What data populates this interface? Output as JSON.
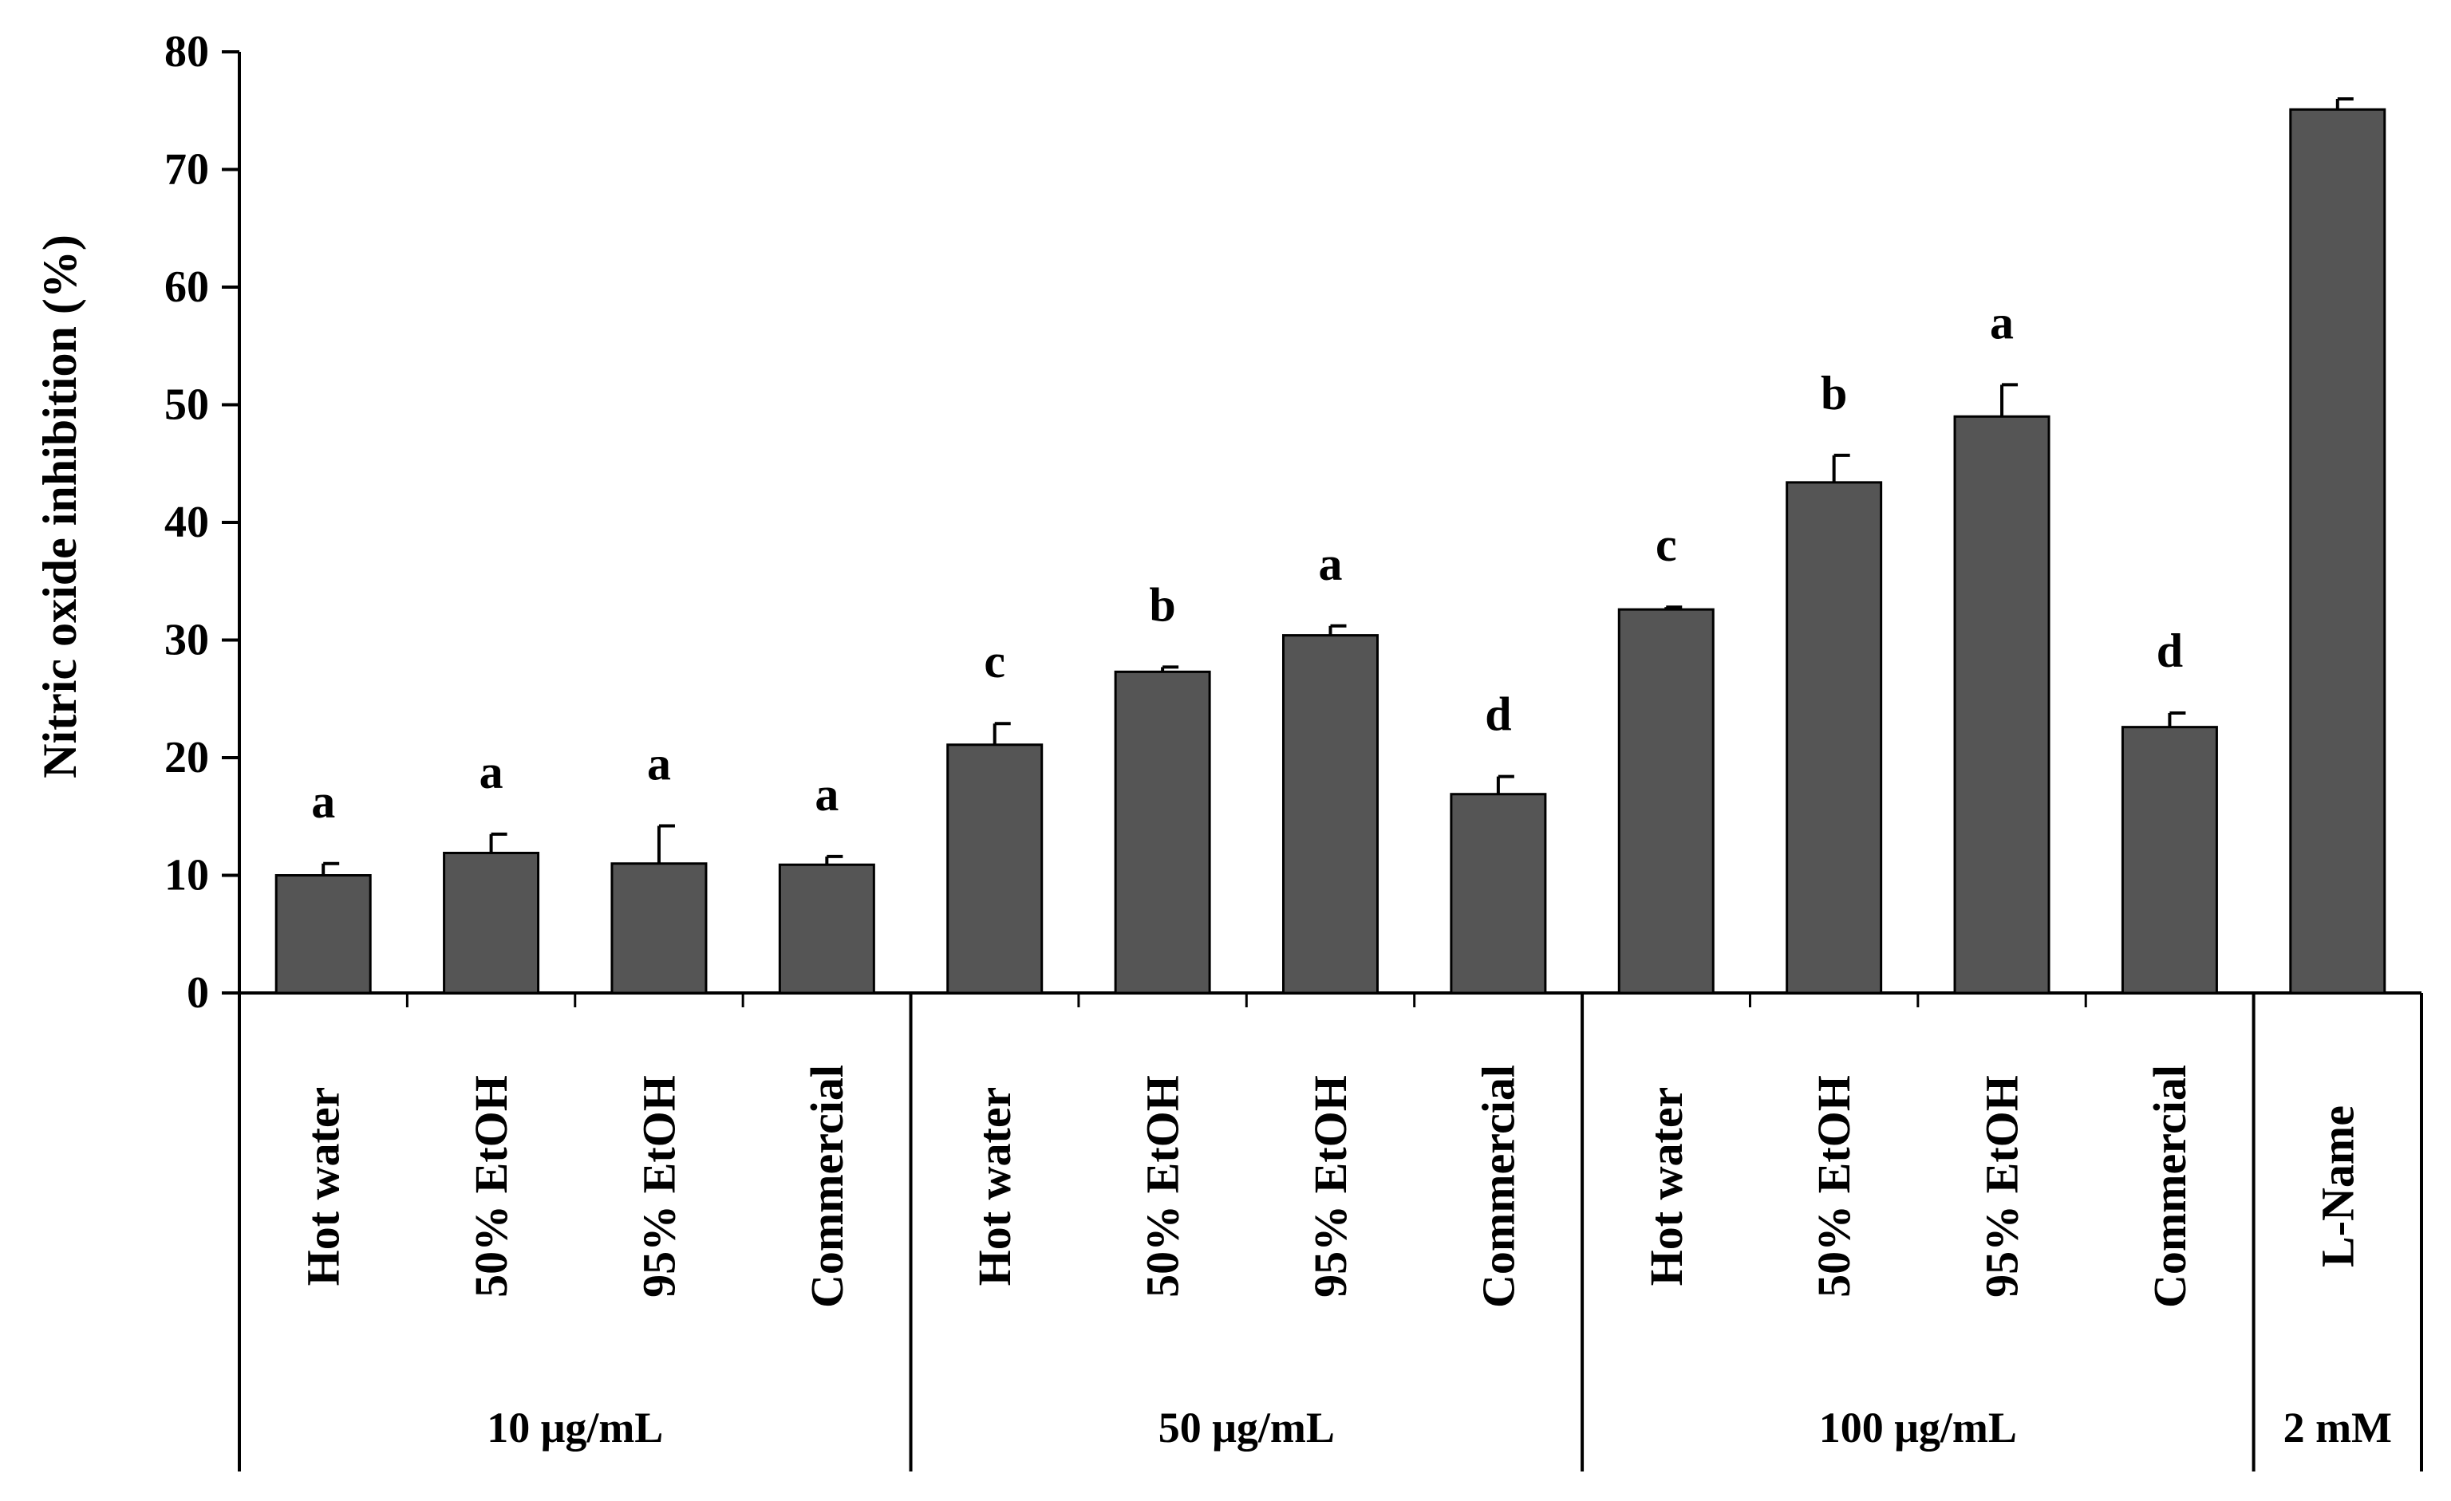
{
  "chart_data": {
    "type": "bar",
    "title": "",
    "xlabel": "",
    "ylabel": "Nitric oxide inhibition (%)",
    "ylim": [
      0,
      80
    ],
    "yticks": [
      0,
      10,
      20,
      30,
      40,
      50,
      60,
      70,
      80
    ],
    "grid": false,
    "legend": "none",
    "bar_color": "#555555",
    "categories": [
      "Hot water",
      "50% EtOH",
      "95% EtOH",
      "Commercial",
      "Hot water",
      "50% EtOH",
      "95% EtOH",
      "Commercial",
      "Hot water",
      "50% EtOH",
      "95% EtOH",
      "Commercial",
      "L-Name"
    ],
    "values": [
      10.0,
      11.9,
      11.0,
      10.9,
      21.1,
      27.3,
      30.4,
      16.9,
      32.6,
      43.4,
      49.0,
      22.6,
      75.1
    ],
    "errors": [
      1.0,
      1.6,
      3.2,
      0.7,
      1.8,
      0.4,
      0.8,
      1.5,
      0.2,
      2.3,
      2.7,
      1.2,
      0.9
    ],
    "annotations": [
      "a",
      "a",
      "a",
      "a",
      "c",
      "b",
      "a",
      "d",
      "c",
      "b",
      "a",
      "d",
      ""
    ],
    "groups": [
      {
        "label": "10 μg/mL",
        "start": 0,
        "count": 4
      },
      {
        "label": "50 μg/mL",
        "start": 4,
        "count": 4
      },
      {
        "label": "100 μg/mL",
        "start": 8,
        "count": 4
      },
      {
        "label": "2 mM",
        "start": 12,
        "count": 1
      }
    ]
  }
}
